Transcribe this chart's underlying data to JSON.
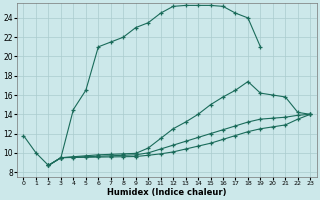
{
  "xlabel": "Humidex (Indice chaleur)",
  "bg_color": "#cce8ea",
  "grid_color": "#aaccce",
  "line_color": "#1a6b5a",
  "xlim": [
    -0.5,
    23.5
  ],
  "ylim": [
    7.5,
    25.5
  ],
  "xticks": [
    0,
    1,
    2,
    3,
    4,
    5,
    6,
    7,
    8,
    9,
    10,
    11,
    12,
    13,
    14,
    15,
    16,
    17,
    18,
    19,
    20,
    21,
    22,
    23
  ],
  "yticks": [
    8,
    10,
    12,
    14,
    16,
    18,
    20,
    22,
    24
  ],
  "curve1_x": [
    0,
    1,
    2,
    3,
    4,
    5,
    6,
    7,
    8,
    9,
    10,
    11,
    12,
    13,
    14,
    15,
    16,
    17,
    18,
    19
  ],
  "curve1_y": [
    11.8,
    10.0,
    8.7,
    9.5,
    14.5,
    16.5,
    21.0,
    21.5,
    22.0,
    23.0,
    23.5,
    24.5,
    25.2,
    25.3,
    25.3,
    25.3,
    25.2,
    24.5,
    24.0,
    21.0
  ],
  "curve2_x": [
    2,
    3,
    4,
    5,
    6,
    7,
    8,
    9,
    10,
    11,
    12,
    13,
    14,
    15,
    16,
    17,
    18,
    19,
    20,
    21,
    22,
    23
  ],
  "curve2_y": [
    8.7,
    9.5,
    9.6,
    9.7,
    9.8,
    9.85,
    9.9,
    9.95,
    10.5,
    11.5,
    12.5,
    13.2,
    14.0,
    15.0,
    15.8,
    16.5,
    17.4,
    16.2,
    16.0,
    15.8,
    14.2,
    14.0
  ],
  "curve3_x": [
    2,
    3,
    4,
    5,
    6,
    7,
    8,
    9,
    10,
    11,
    12,
    13,
    14,
    15,
    16,
    17,
    18,
    19,
    20,
    21,
    22,
    23
  ],
  "curve3_y": [
    8.7,
    9.5,
    9.55,
    9.6,
    9.65,
    9.7,
    9.75,
    9.8,
    10.0,
    10.4,
    10.8,
    11.2,
    11.6,
    12.0,
    12.4,
    12.8,
    13.2,
    13.5,
    13.6,
    13.7,
    13.9,
    14.0
  ],
  "curve4_x": [
    2,
    3,
    4,
    5,
    6,
    7,
    8,
    9,
    10,
    11,
    12,
    13,
    14,
    15,
    16,
    17,
    18,
    19,
    20,
    21,
    22,
    23
  ],
  "curve4_y": [
    8.7,
    9.5,
    9.52,
    9.54,
    9.56,
    9.58,
    9.6,
    9.62,
    9.75,
    9.9,
    10.1,
    10.4,
    10.7,
    11.0,
    11.4,
    11.8,
    12.2,
    12.5,
    12.7,
    12.9,
    13.5,
    14.0
  ]
}
